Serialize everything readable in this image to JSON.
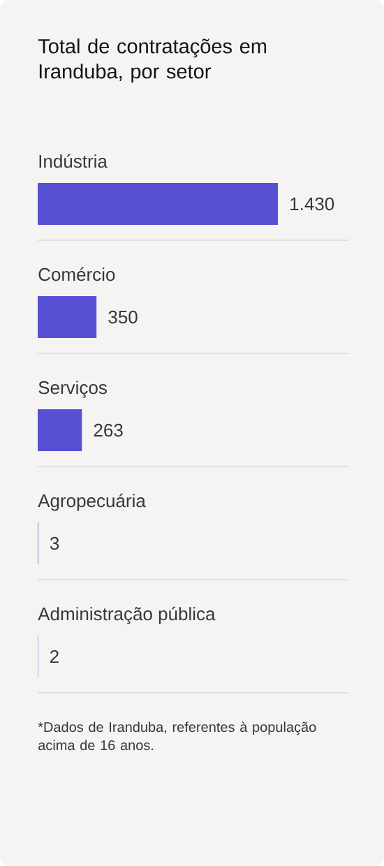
{
  "chart_data": {
    "type": "bar",
    "orientation": "horizontal",
    "title": "Total de contratações em Iranduba, por setor",
    "categories": [
      "Indústria",
      "Comércio",
      "Serviços",
      "Agropecuária",
      "Administração pública"
    ],
    "values": [
      1430,
      350,
      263,
      3,
      2
    ],
    "value_labels": [
      "1.430",
      "350",
      "263",
      "3",
      "2"
    ],
    "color": "#5850d4",
    "annotations": [
      "*Dados de Iranduba, referentes à população acima de 16 anos."
    ]
  }
}
